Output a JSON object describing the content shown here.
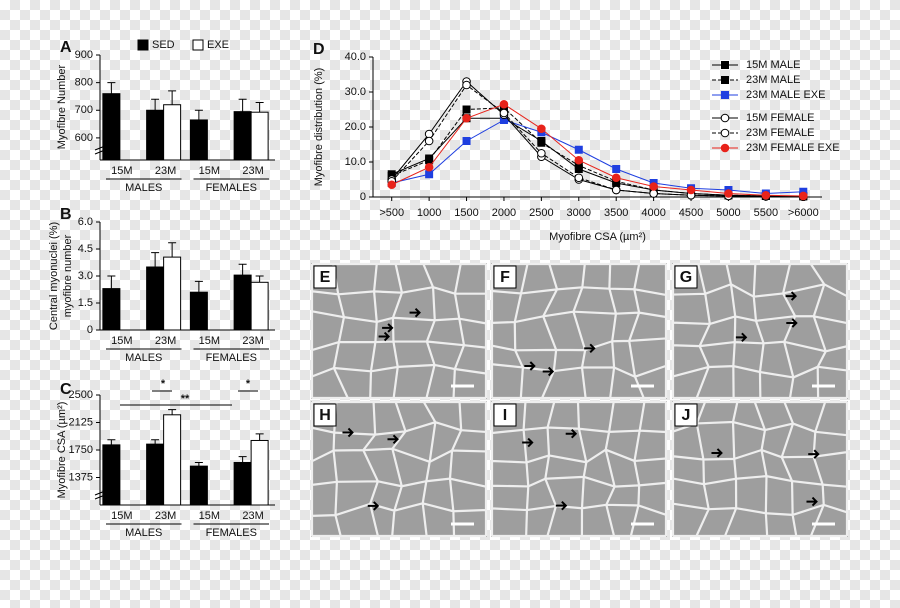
{
  "chart_data": [
    {
      "type": "bar",
      "panel_label": "A",
      "ylabel": [
        "Myofibre Number"
      ],
      "categories": [
        "15M",
        "23M",
        "15M",
        "23M"
      ],
      "groups": [
        "MALES",
        "FEMALES"
      ],
      "legend": true,
      "series": [
        {
          "name": "SED",
          "color": "#000000",
          "values": [
            760,
            700,
            665,
            695
          ],
          "errors": [
            40,
            40,
            35,
            45
          ]
        },
        {
          "name": "EXE",
          "color": "#ffffff",
          "values": [
            null,
            720,
            null,
            693
          ],
          "errors": [
            null,
            50,
            null,
            35
          ]
        }
      ],
      "ylim": [
        520,
        900
      ],
      "yticks": [
        600,
        700,
        800,
        900
      ]
    },
    {
      "type": "bar",
      "panel_label": "B",
      "ylabel": [
        "Central myonuclei (%)",
        "myofibre number"
      ],
      "categories": [
        "15M",
        "23M",
        "15M",
        "23M"
      ],
      "groups": [
        "MALES",
        "FEMALES"
      ],
      "legend": false,
      "series": [
        {
          "color": "#000000",
          "values": [
            2.3,
            3.5,
            2.1,
            3.05
          ],
          "errors": [
            0.7,
            0.8,
            0.6,
            0.6
          ]
        },
        {
          "color": "#ffffff",
          "values": [
            null,
            4.05,
            null,
            2.65
          ],
          "errors": [
            null,
            0.8,
            null,
            0.35
          ]
        }
      ],
      "ylim": [
        0,
        6
      ],
      "yticks": [
        0,
        1.5,
        {
          "value": 3,
          "label": "3.0"
        },
        4.5,
        {
          "value": 6,
          "label": "6.0"
        }
      ]
    },
    {
      "type": "bar",
      "panel_label": "C",
      "ylabel": [
        "Myofibre CSA (µm²)"
      ],
      "categories": [
        "15M",
        "23M",
        "15M",
        "23M"
      ],
      "groups": [
        "MALES",
        "FEMALES"
      ],
      "legend": false,
      "series": [
        {
          "color": "#000000",
          "values": [
            1820,
            1830,
            1530,
            1580
          ],
          "errors": [
            70,
            60,
            50,
            80
          ]
        },
        {
          "color": "#ffffff",
          "values": [
            null,
            2230,
            null,
            1880
          ],
          "errors": [
            null,
            70,
            null,
            90
          ]
        }
      ],
      "annotations": [
        "*",
        "**",
        "*"
      ],
      "ylim": [
        1000,
        2500
      ],
      "yticks": [
        1375,
        1750,
        2125,
        2500
      ]
    },
    {
      "type": "line",
      "panel_label": "D",
      "ylabel": [
        "Myofibre distribution (%)"
      ],
      "xlabel": "Myofibre CSA (µm²)",
      "categories": [
        ">500",
        "1000",
        "1500",
        "2000",
        "2500",
        "3000",
        "3500",
        "4000",
        "4500",
        "5000",
        "5500",
        ">6000"
      ],
      "series": [
        {
          "name": "15M MALE",
          "color": "#000000",
          "marker": "square",
          "fill": "#000000",
          "dash": false,
          "values": [
            6.5,
            11,
            22.5,
            22.5,
            16,
            8,
            4,
            2,
            1,
            0.5,
            0.3,
            0.2
          ]
        },
        {
          "name": "23M MALE",
          "color": "#000000",
          "marker": "square",
          "fill": "#000000",
          "dash": true,
          "values": [
            6,
            10.5,
            25,
            25.5,
            15.5,
            9,
            4.5,
            2,
            1,
            0.5,
            0.3,
            0.2
          ]
        },
        {
          "name": "23M MALE EXE",
          "color": "#1f3fe0",
          "marker": "square",
          "fill": "#1f3fe0",
          "dash": false,
          "values": [
            4,
            6.5,
            16,
            22,
            18.5,
            13.5,
            8,
            4,
            2.5,
            2,
            1,
            1.5
          ]
        },
        {
          "name": "15M FEMALE",
          "color": "#000000",
          "marker": "circle",
          "fill": "#ffffff",
          "dash": false,
          "values": [
            5,
            18,
            33,
            23.5,
            11.5,
            5,
            2,
            1,
            0.5,
            0.3,
            0.2,
            0.1
          ]
        },
        {
          "name": "23M FEMALE",
          "color": "#000000",
          "marker": "circle",
          "fill": "#ffffff",
          "dash": true,
          "values": [
            4.5,
            16,
            32,
            24,
            12.5,
            5.5,
            2,
            1,
            0.5,
            0.3,
            0.2,
            0.1
          ]
        },
        {
          "name": "23M FEMALE EXE",
          "color": "#e8231b",
          "marker": "circle",
          "fill": "#e8231b",
          "dash": false,
          "values": [
            3.5,
            8.5,
            22.5,
            26.5,
            19.5,
            10.5,
            5.5,
            3,
            2,
            1,
            0.5,
            0.3
          ]
        }
      ],
      "ylim": [
        0,
        40
      ],
      "yticks": [
        0,
        {
          "value": 10,
          "label": "10.0"
        },
        {
          "value": 20,
          "label": "20.0"
        },
        {
          "value": 30,
          "label": "30.0"
        },
        {
          "value": 40,
          "label": "40.0"
        }
      ]
    }
  ],
  "image_panels": {
    "labels": [
      "E",
      "F",
      "G",
      "H",
      "I",
      "J"
    ]
  }
}
